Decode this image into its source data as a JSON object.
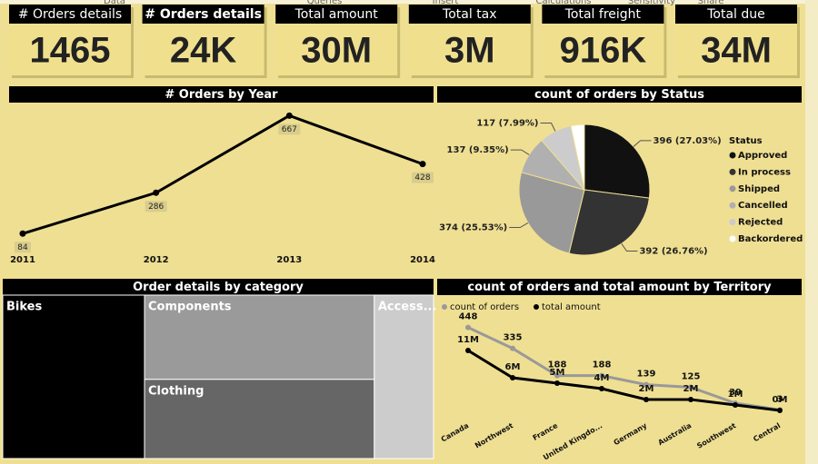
{
  "ribbon": [
    "Data",
    "Queries",
    "Insert",
    "Calculations",
    "Sensitivity",
    "Share"
  ],
  "cards": [
    {
      "title": "# Orders details",
      "value": "1465"
    },
    {
      "title": "# Orders details",
      "value": "24K"
    },
    {
      "title": "Total amount",
      "value": "30M"
    },
    {
      "title": "Total tax",
      "value": "3M"
    },
    {
      "title": "Total freight",
      "value": "916K"
    },
    {
      "title": "Total due",
      "value": "34M"
    }
  ],
  "chart_data": [
    {
      "type": "line",
      "title": "# Orders by Year",
      "categories": [
        "2011",
        "2012",
        "2013",
        "2014"
      ],
      "values": [
        84,
        286,
        667,
        428
      ],
      "color": "#000000",
      "ylim": [
        0,
        700
      ]
    },
    {
      "type": "pie",
      "title": "count of orders by Status",
      "legend_title": "Status",
      "categories": [
        "Approved",
        "In process",
        "Shipped",
        "Cancelled",
        "Rejected",
        "Backordered"
      ],
      "values": [
        396,
        392,
        374,
        137,
        117,
        49
      ],
      "value_labels": [
        "396 (27.03%)",
        "392 (26.76%)",
        "374 (25.53%)",
        "137 (9.35%)",
        "117 (7.99%)",
        null
      ],
      "colors": [
        "#111111",
        "#333333",
        "#999999",
        "#b0b0b0",
        "#cccccc",
        "#ffffff"
      ]
    },
    {
      "type": "treemap",
      "title": "Order details by category",
      "categories": [
        "Bikes",
        "Components",
        "Clothing",
        "Access..."
      ],
      "values": [
        7900,
        6600,
        6200,
        3300
      ],
      "colors": [
        "#000000",
        "#9a9a9a",
        "#666666",
        "#cccccc"
      ]
    },
    {
      "type": "line",
      "title": "count of orders and total amount by Territory",
      "categories": [
        "Canada",
        "Northwest",
        "France",
        "United Kingdo...",
        "Germany",
        "Australia",
        "Southwest",
        "Central"
      ],
      "series": [
        {
          "name": "count of orders",
          "color": "#999999",
          "axis": "y2",
          "values": [
            448,
            335,
            188,
            188,
            139,
            125,
            39,
            3
          ]
        },
        {
          "name": "total amount",
          "color": "#000000",
          "values": [
            11000000,
            6000000,
            5000000,
            4000000,
            2000000,
            2000000,
            1000000,
            0
          ],
          "value_labels": [
            "11M",
            "6M",
            "5M",
            "4M",
            "2M",
            "2M",
            "1M",
            "0M"
          ]
        }
      ],
      "ylim": [
        0,
        12000000
      ],
      "y2lim": [
        0,
        500
      ]
    }
  ]
}
